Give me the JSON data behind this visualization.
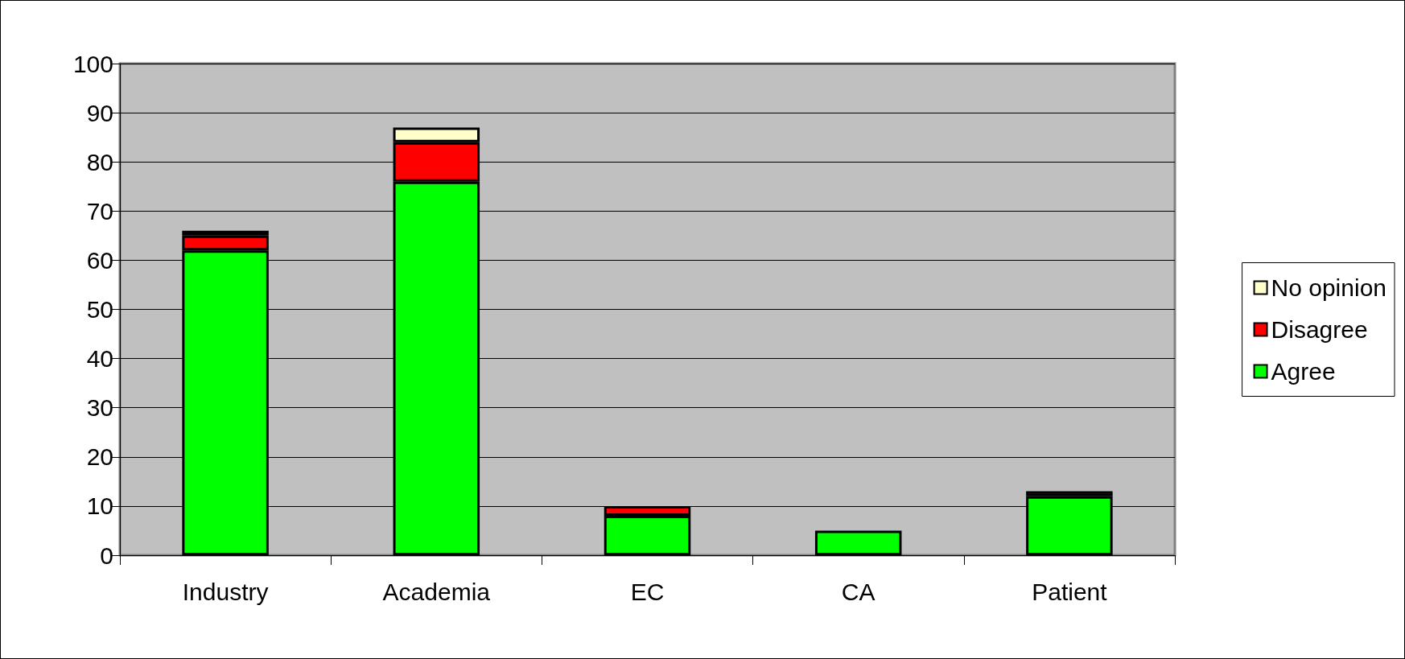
{
  "chart_data": {
    "type": "bar",
    "stacked": true,
    "categories": [
      "Industry",
      "Academia",
      "EC",
      "CA",
      "Patient"
    ],
    "series": [
      {
        "name": "Agree",
        "color": "#00ff00",
        "values": [
          62,
          76,
          8,
          5,
          12
        ]
      },
      {
        "name": "Disagree",
        "color": "#ff0000",
        "values": [
          3,
          8,
          2,
          null,
          1
        ]
      },
      {
        "name": "No opinion",
        "color": "#ffffcc",
        "values": [
          1,
          3,
          null,
          null,
          null
        ]
      }
    ],
    "ylim": [
      0,
      100
    ],
    "yticks": [
      0,
      10,
      20,
      30,
      40,
      50,
      60,
      70,
      80,
      90,
      100
    ],
    "grid": "y",
    "legend": "right"
  }
}
